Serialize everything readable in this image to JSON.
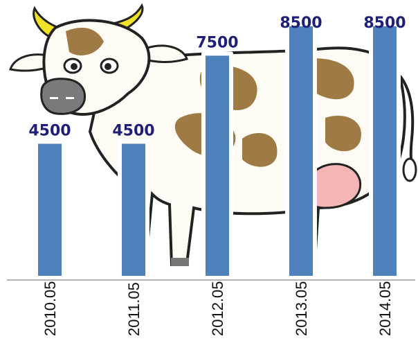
{
  "chart_data": {
    "type": "bar",
    "categories": [
      "2010.05",
      "2011.05",
      "2012.05",
      "2013.05",
      "2014.05"
    ],
    "values": [
      4500,
      4500,
      7500,
      8500,
      8500
    ],
    "data_labels": [
      "4500",
      "4500",
      "7500",
      "8500",
      "8500"
    ],
    "title": "",
    "xlabel": "",
    "ylabel": "",
    "ylim": [
      0,
      8500
    ],
    "grid": false,
    "legend": "none",
    "bar_color": "#4f81bd",
    "label_color": "#1f1f7a",
    "background_image": "cow-illustration"
  }
}
